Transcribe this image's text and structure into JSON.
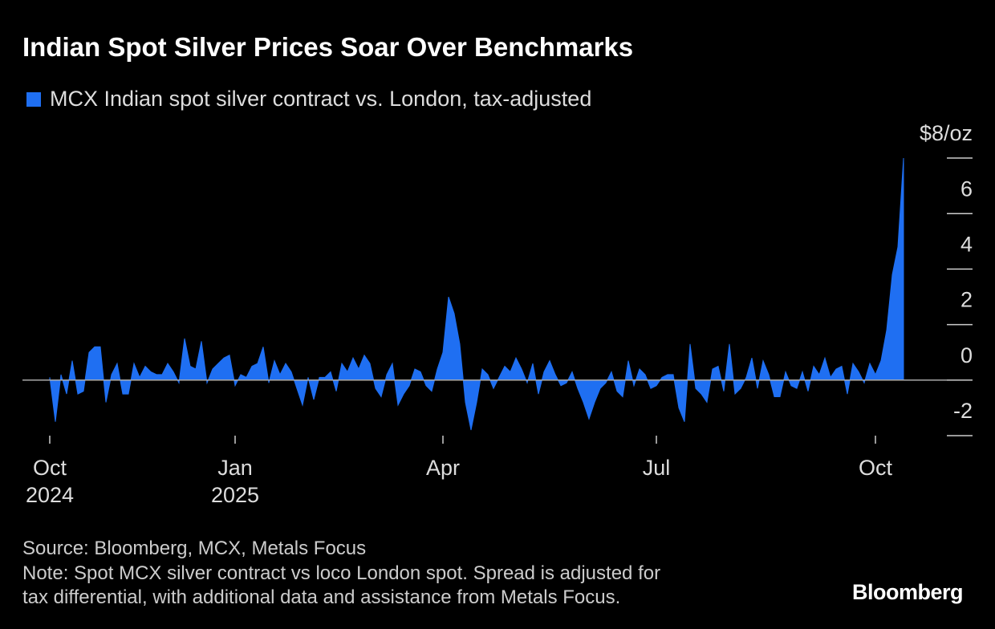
{
  "chart_data": {
    "type": "area",
    "title": "Indian Spot Silver Prices Soar Over Benchmarks",
    "source": "Source: Bloomberg, MCX, Metals Focus",
    "note": "Note: Spot MCX silver contract vs loco London spot. Spread is adjusted for\ntax differential, with additional data and assistance from Metals Focus.",
    "brand": "Bloomberg",
    "categories": [
      "Oct\n2024",
      null,
      null,
      null,
      null,
      null,
      null,
      null,
      null,
      null,
      null,
      null,
      null,
      null,
      null,
      null,
      null,
      null,
      null,
      null,
      null,
      null,
      null,
      null,
      null,
      null,
      null,
      null,
      null,
      null,
      null,
      null,
      null,
      "Jan\n2025",
      null,
      null,
      null,
      null,
      null,
      null,
      null,
      null,
      null,
      null,
      null,
      null,
      null,
      null,
      null,
      null,
      null,
      null,
      null,
      null,
      null,
      null,
      null,
      null,
      null,
      null,
      null,
      null,
      null,
      null,
      null,
      null,
      null,
      null,
      null,
      null,
      "Apr",
      null,
      null,
      null,
      null,
      null,
      null,
      null,
      null,
      null,
      null,
      null,
      null,
      null,
      null,
      null,
      null,
      null,
      null,
      null,
      null,
      null,
      null,
      null,
      null,
      null,
      null,
      null,
      null,
      null,
      null,
      null,
      null,
      null,
      null,
      null,
      null,
      null,
      "Jul",
      null,
      null,
      null,
      null,
      null,
      null,
      null,
      null,
      null,
      null,
      null,
      null,
      null,
      null,
      null,
      null,
      null,
      null,
      null,
      null,
      null,
      null,
      null,
      null,
      null,
      null,
      null,
      null,
      null,
      null,
      null,
      null,
      null,
      null,
      null,
      null,
      null,
      null,
      "Oct",
      null,
      null,
      null,
      null,
      null
    ],
    "series": [
      {
        "name": "MCX Indian spot silver contract vs. London, tax-adjusted",
        "color": "#1f6ff2",
        "values": [
          0.1,
          -1.5,
          0.2,
          -0.5,
          0.7,
          -0.5,
          -0.4,
          1.0,
          1.2,
          1.2,
          -0.8,
          0.2,
          0.6,
          -0.5,
          -0.5,
          0.6,
          0.1,
          0.5,
          0.3,
          0.2,
          0.2,
          0.6,
          0.3,
          -0.1,
          1.5,
          0.5,
          0.4,
          1.4,
          -0.1,
          0.4,
          0.6,
          0.8,
          0.9,
          -0.2,
          0.2,
          0.1,
          0.5,
          0.6,
          1.2,
          -0.1,
          0.7,
          0.2,
          0.6,
          0.3,
          -0.3,
          -0.9,
          0.1,
          -0.7,
          0.1,
          0.1,
          0.3,
          -0.4,
          0.6,
          0.3,
          0.8,
          0.4,
          0.9,
          0.6,
          -0.3,
          -0.6,
          0.2,
          0.6,
          -0.9,
          -0.5,
          -0.2,
          0.4,
          0.3,
          -0.2,
          -0.4,
          0.4,
          1.0,
          3.0,
          2.4,
          1.3,
          -0.8,
          -1.8,
          -0.8,
          0.4,
          0.2,
          -0.3,
          0.1,
          0.5,
          0.3,
          0.8,
          0.4,
          -0.1,
          0.6,
          -0.5,
          0.3,
          0.7,
          0.2,
          -0.2,
          -0.1,
          0.3,
          -0.3,
          -0.8,
          -1.4,
          -0.8,
          -0.3,
          -0.1,
          0.3,
          -0.4,
          -0.6,
          0.7,
          -0.2,
          0.4,
          0.2,
          -0.3,
          -0.2,
          0.1,
          0.2,
          0.2,
          -1.0,
          -1.5,
          1.3,
          -0.3,
          -0.5,
          -0.8,
          0.4,
          0.5,
          -0.4,
          1.3,
          -0.5,
          -0.3,
          0.1,
          0.8,
          -0.3,
          0.7,
          0.2,
          -0.6,
          -0.6,
          0.3,
          -0.2,
          -0.3,
          0.3,
          -0.4,
          0.5,
          0.2,
          0.8,
          0.1,
          0.4,
          0.5,
          -0.5,
          0.6,
          0.3,
          -0.1,
          0.6,
          0.2,
          0.7,
          1.8,
          3.8,
          4.8,
          8.0
        ]
      }
    ],
    "ylim": [
      -2,
      8
    ],
    "yticks": [
      -2,
      0,
      2,
      4,
      6,
      {
        "value": 8,
        "label": "$8/oz"
      }
    ],
    "legend": "top-left"
  }
}
